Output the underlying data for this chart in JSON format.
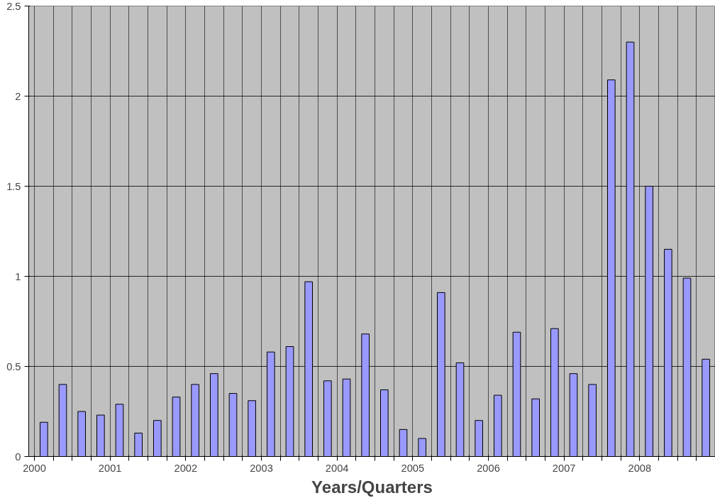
{
  "chart_data": {
    "type": "bar",
    "xlabel": "Years/Quarters",
    "categories": [
      "2000",
      null,
      null,
      null,
      "2001",
      null,
      null,
      null,
      "2002",
      null,
      null,
      null,
      "2003",
      null,
      null,
      null,
      "2004",
      null,
      null,
      null,
      "2005",
      null,
      null,
      null,
      "2006",
      null,
      null,
      null,
      "2007",
      null,
      null,
      null,
      "2008",
      null,
      null,
      null
    ],
    "values": [
      0.19,
      0.4,
      0.25,
      0.23,
      0.29,
      0.13,
      0.2,
      0.33,
      0.4,
      0.46,
      0.35,
      0.31,
      0.58,
      0.61,
      0.97,
      0.42,
      0.43,
      0.68,
      0.37,
      0.15,
      0.1,
      0.91,
      0.52,
      0.2,
      0.34,
      0.69,
      0.32,
      0.71,
      0.46,
      0.4,
      2.09,
      2.3,
      1.5,
      1.15,
      0.99,
      0.54
    ],
    "color": "#9999ff",
    "ylim": [
      0,
      2.5
    ],
    "yticks": [
      0,
      0.5,
      1,
      1.5,
      2,
      2.5
    ],
    "grid": true
  }
}
